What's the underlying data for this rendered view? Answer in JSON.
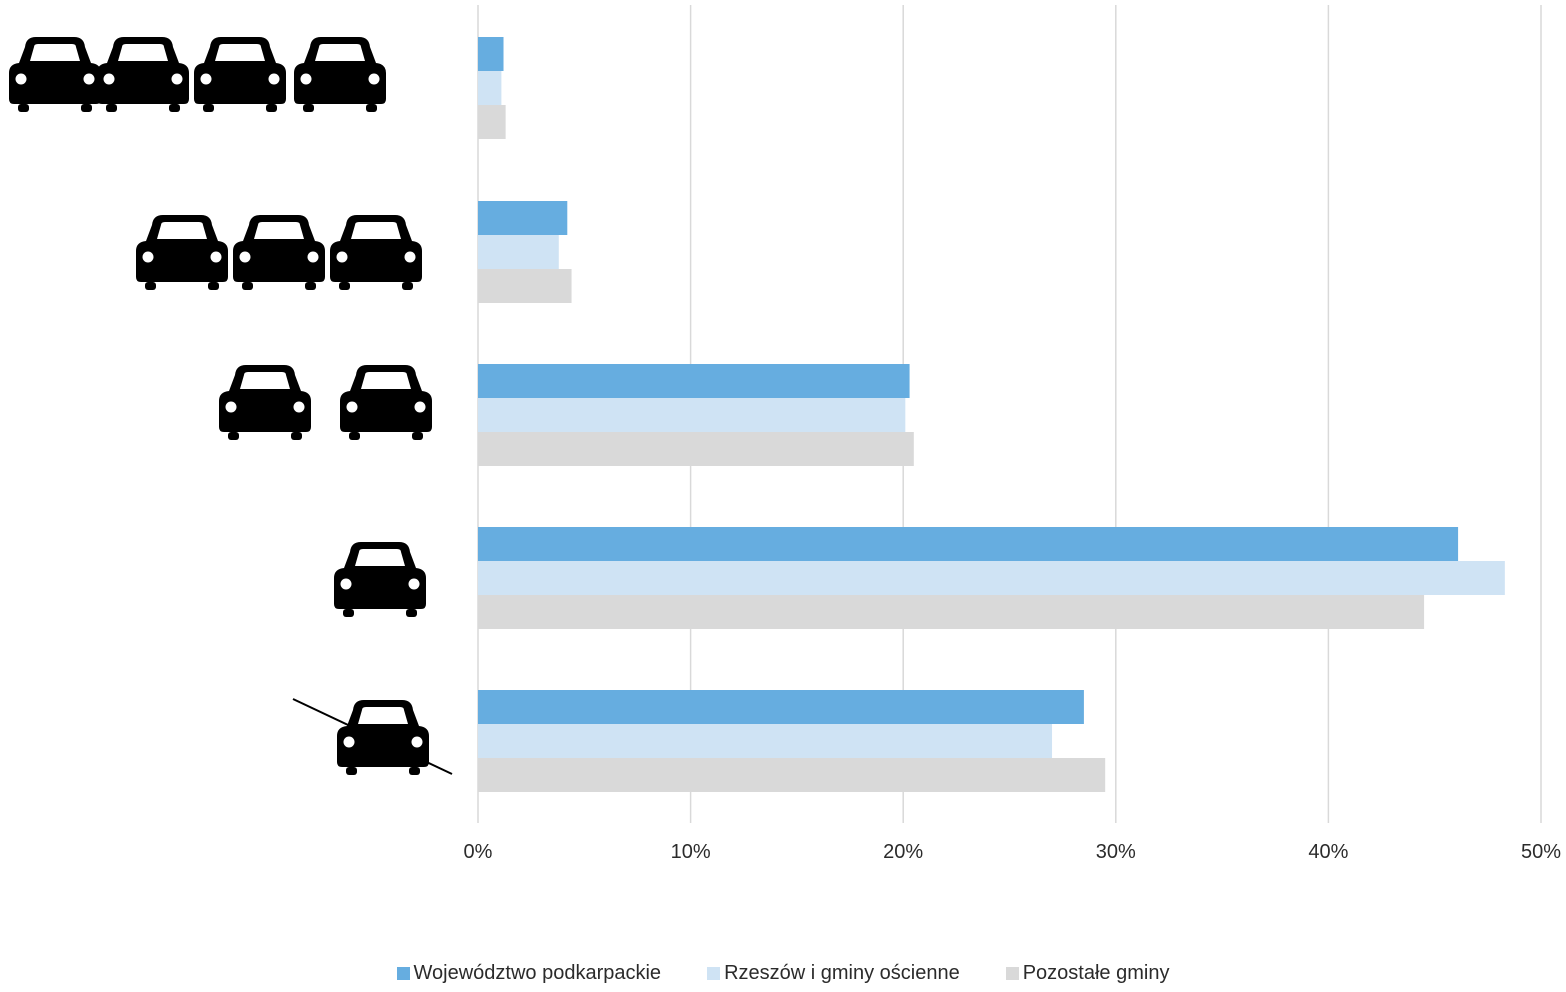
{
  "chart_data": {
    "type": "bar",
    "orientation": "horizontal",
    "categories": [
      "4 cars",
      "3 cars",
      "2 cars",
      "1 car",
      "no car"
    ],
    "category_icons": [
      {
        "icon": "car-icon",
        "count": 4,
        "crossed_out": false
      },
      {
        "icon": "car-icon",
        "count": 3,
        "crossed_out": false
      },
      {
        "icon": "car-icon",
        "count": 2,
        "crossed_out": false
      },
      {
        "icon": "car-icon",
        "count": 1,
        "crossed_out": false
      },
      {
        "icon": "car-icon",
        "count": 1,
        "crossed_out": true
      }
    ],
    "series": [
      {
        "name": "Województwo podkarpackie",
        "color": "#66ade0",
        "values": [
          1.2,
          4.2,
          20.3,
          46.1,
          28.5
        ]
      },
      {
        "name": "Rzeszów i gminy ościenne",
        "color": "#cfe3f4",
        "values": [
          1.1,
          3.8,
          20.1,
          48.3,
          27.0
        ]
      },
      {
        "name": "Pozostałe gminy",
        "color": "#d9d9d9",
        "values": [
          1.3,
          4.4,
          20.5,
          44.5,
          29.5
        ]
      }
    ],
    "xlim": [
      0,
      50
    ],
    "x_ticks": [
      "0%",
      "10%",
      "20%",
      "30%",
      "40%",
      "50%"
    ],
    "x_tick_values": [
      0,
      10,
      20,
      30,
      40,
      50
    ],
    "grid": true,
    "legend_position": "bottom",
    "title": "",
    "xlabel": "",
    "ylabel": ""
  }
}
